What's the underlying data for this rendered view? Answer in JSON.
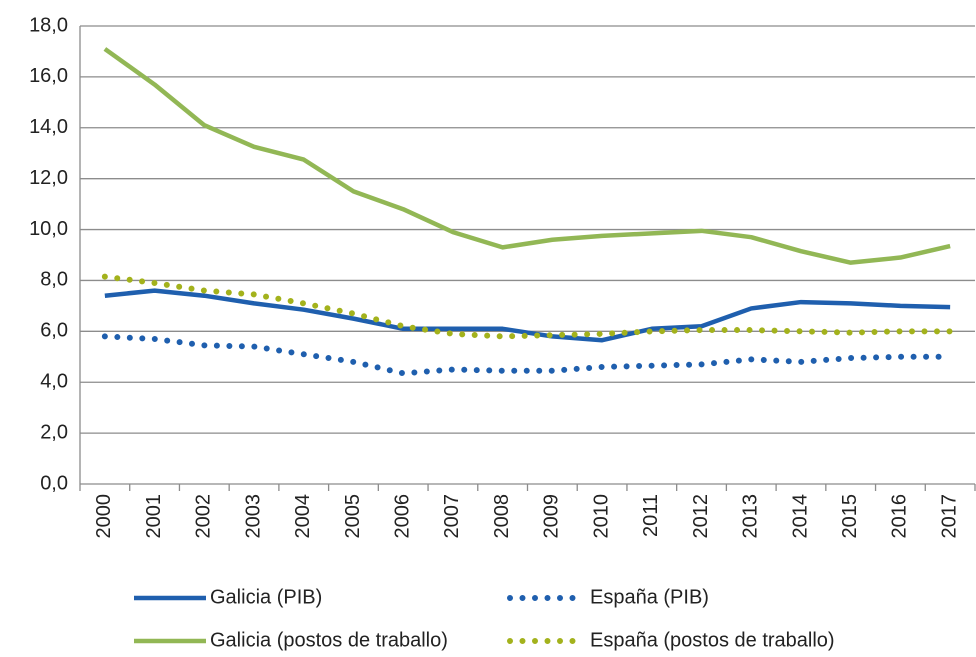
{
  "chart_data": {
    "type": "line",
    "categories": [
      "2000",
      "2001",
      "2002",
      "2003",
      "2004",
      "2005",
      "2006",
      "2007",
      "2008",
      "2009",
      "2010",
      "2011",
      "2012",
      "2013",
      "2014",
      "2015",
      "2016",
      "2017"
    ],
    "series": [
      {
        "name": "Galicia (PIB)",
        "color": "#1f5fae",
        "style": "solid",
        "values": [
          7.4,
          7.6,
          7.4,
          7.1,
          6.85,
          6.5,
          6.1,
          6.1,
          6.1,
          5.8,
          5.65,
          6.1,
          6.2,
          6.9,
          7.15,
          7.1,
          7.0,
          6.95
        ]
      },
      {
        "name": "España (PIB)",
        "color": "#1f5fae",
        "style": "dotted",
        "values": [
          5.8,
          5.7,
          5.45,
          5.4,
          5.1,
          4.8,
          4.35,
          4.5,
          4.45,
          4.45,
          4.6,
          4.65,
          4.7,
          4.9,
          4.8,
          4.95,
          5.0,
          5.0
        ]
      },
      {
        "name": "Galicia (postos de traballo)",
        "color": "#92b755",
        "style": "solid",
        "values": [
          17.1,
          15.7,
          14.1,
          13.25,
          12.75,
          11.5,
          10.8,
          9.9,
          9.3,
          9.6,
          9.75,
          9.85,
          9.95,
          9.7,
          9.15,
          8.7,
          8.9,
          9.35
        ]
      },
      {
        "name": "España (postos de traballo)",
        "color": "#a3b21c",
        "style": "dotted",
        "values": [
          8.15,
          7.9,
          7.6,
          7.45,
          7.1,
          6.7,
          6.2,
          5.9,
          5.8,
          5.85,
          5.9,
          6.0,
          6.05,
          6.05,
          6.0,
          5.95,
          6.0,
          6.0
        ]
      }
    ],
    "ylim": [
      0,
      18
    ],
    "yticks": [
      {
        "value": 0,
        "label": "0,0"
      },
      {
        "value": 2,
        "label": "2,0"
      },
      {
        "value": 4,
        "label": "4,0"
      },
      {
        "value": 6,
        "label": "6,0"
      },
      {
        "value": 8,
        "label": "8,0"
      },
      {
        "value": 10,
        "label": "10,0"
      },
      {
        "value": 12,
        "label": "12,0"
      },
      {
        "value": 14,
        "label": "14,0"
      },
      {
        "value": 16,
        "label": "16,0"
      },
      {
        "value": 18,
        "label": "18,0"
      }
    ],
    "grid": true,
    "legend": "bottom"
  }
}
